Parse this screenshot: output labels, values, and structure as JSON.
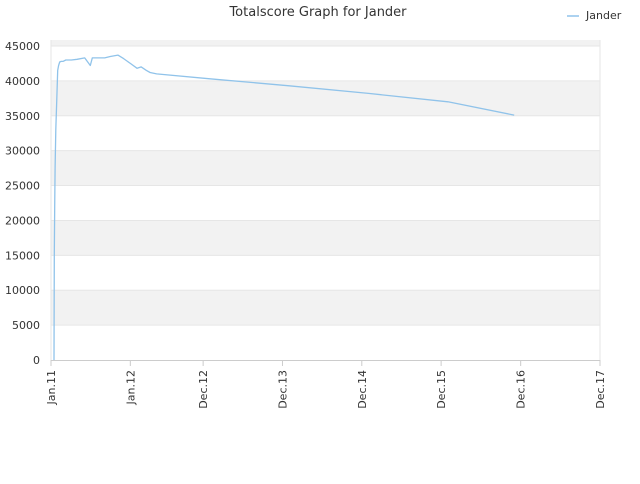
{
  "chart_data": {
    "type": "line",
    "title": "Totalscore Graph for Jander",
    "xlabel": "",
    "ylabel": "",
    "ylim": [
      0,
      45000
    ],
    "y_ticks": [
      0,
      5000,
      10000,
      15000,
      20000,
      25000,
      30000,
      35000,
      40000,
      45000
    ],
    "y_tick_labels": [
      "0",
      "5000",
      "10000",
      "15000",
      "20000",
      "25000",
      "30000",
      "35000",
      "40000",
      "45000"
    ],
    "x_range": [
      "2011-01-01",
      "2017-12-01"
    ],
    "x_ticks": [
      "2011-01-01",
      "2012-01-01",
      "2012-12-01",
      "2013-12-01",
      "2014-12-01",
      "2015-12-01",
      "2016-12-01",
      "2017-12-01"
    ],
    "x_tick_labels": [
      "Jan.11",
      "Jan.12",
      "Dec.12",
      "Dec.13",
      "Dec.14",
      "Dec.15",
      "Dec.16",
      "Dec.17"
    ],
    "grid": true,
    "legend_position": "top-right",
    "colors": {
      "line": "#90c3ea",
      "band": "#f2f2f2",
      "grid": "#e6e6e6",
      "axis": "#cccccc",
      "text": "#333333"
    },
    "series": [
      {
        "name": "Jander",
        "x": [
          "2011-01-15",
          "2011-01-16",
          "2011-01-18",
          "2011-01-20",
          "2011-01-23",
          "2011-01-27",
          "2011-02-01",
          "2011-02-05",
          "2011-02-10",
          "2011-02-17",
          "2011-02-25",
          "2011-03-10",
          "2011-04-05",
          "2011-05-01",
          "2011-06-05",
          "2011-07-01",
          "2011-07-10",
          "2011-07-15",
          "2011-08-15",
          "2011-09-05",
          "2011-10-01",
          "2011-11-05",
          "2011-12-01",
          "2012-01-01",
          "2012-02-01",
          "2012-02-20",
          "2012-03-15",
          "2012-04-01",
          "2012-05-01",
          "2013-01-01",
          "2014-01-01",
          "2015-01-01",
          "2016-01-01",
          "2016-11-01"
        ],
        "y": [
          0,
          15000,
          22000,
          27500,
          33000,
          37000,
          41500,
          42200,
          42700,
          42800,
          42800,
          43000,
          43000,
          43100,
          43300,
          42200,
          43300,
          43300,
          43300,
          43300,
          43500,
          43700,
          43200,
          42500,
          41800,
          42000,
          41500,
          41200,
          41000,
          40300,
          39300,
          38200,
          37000,
          35100
        ]
      }
    ]
  }
}
